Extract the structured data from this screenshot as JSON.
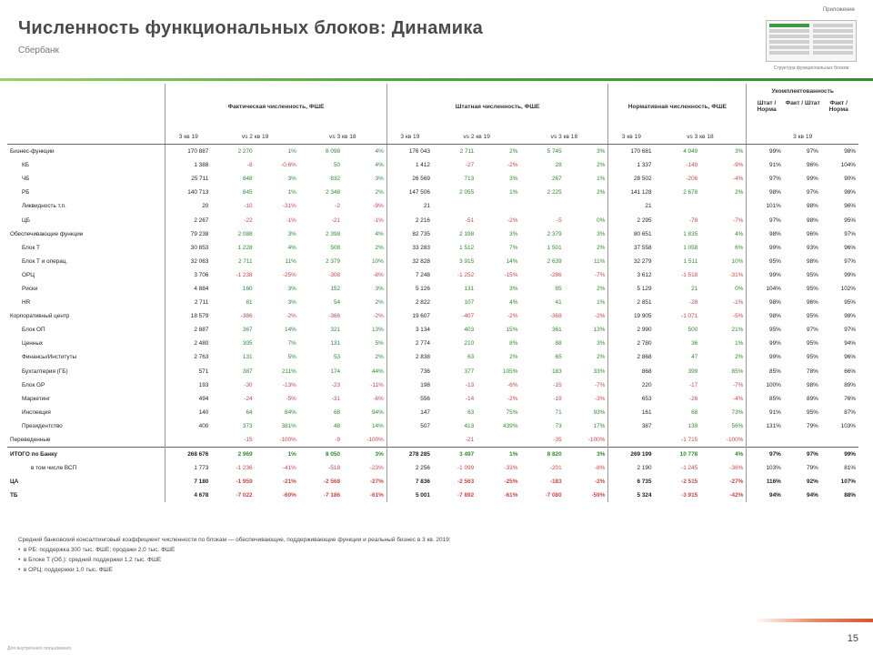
{
  "header": {
    "title": "Численность функциональных блоков: Динамика",
    "subtitle": "Сбербанк",
    "thumb_label": "Приложение",
    "thumb_caption": "Структура функциональных блоков"
  },
  "table": {
    "groups": {
      "g1": "Фактическая численность, ФШЕ",
      "g2": "Штатная численность, ФШЕ",
      "g3": "Нормативная численность, ФШЕ",
      "g4": "Укомплектованность",
      "g4_sub": [
        "Штат / Норма",
        "Факт / Штат",
        "Факт / Норма"
      ]
    },
    "subheaders": [
      "3 кв 19",
      "vs 2 кв 19",
      "vs 3 кв 18",
      "3 кв 19",
      "vs 2 кв 19",
      "vs 3 кв 18",
      "3 кв 19",
      "vs 3 кв 18",
      "3 кв 19"
    ],
    "rows": [
      {
        "label": "Бизнес-функции",
        "lvl": 0,
        "cells": [
          "170 887",
          "2 270",
          "1%",
          "6 098",
          "4%",
          "176 043",
          "2 711",
          "2%",
          "5 745",
          "3%",
          "170 681",
          "4 949",
          "3%",
          "99%",
          "97%",
          "98%"
        ]
      },
      {
        "label": "КБ",
        "lvl": 1,
        "cells": [
          "1 388",
          "-8",
          "-0.6%",
          "50",
          "4%",
          "1 412",
          "-27",
          "-2%",
          "28",
          "2%",
          "1 337",
          "-140",
          "-9%",
          "91%",
          "96%",
          "104%"
        ]
      },
      {
        "label": "ЧБ",
        "lvl": 1,
        "cells": [
          "25 711",
          "848",
          "3%",
          "832",
          "3%",
          "26 569",
          "713",
          "3%",
          "267",
          "1%",
          "28 502",
          "-206",
          "-4%",
          "97%",
          "99%",
          "90%"
        ]
      },
      {
        "label": "РБ",
        "lvl": 1,
        "cells": [
          "140 713",
          "845",
          "1%",
          "2 348",
          "2%",
          "147 506",
          "2 055",
          "1%",
          "2 225",
          "2%",
          "141 128",
          "2 678",
          "2%",
          "98%",
          "97%",
          "98%"
        ]
      },
      {
        "label": "Ликвидность т.п.",
        "lvl": 1,
        "cells": [
          "20",
          "-10",
          "-31%",
          "-2",
          "-9%",
          "21",
          "",
          "",
          "",
          "",
          "21",
          "",
          "",
          "101%",
          "98%",
          "96%"
        ]
      },
      {
        "label": "ЦБ",
        "lvl": 1,
        "cells": [
          "2 267",
          "-22",
          "-1%",
          "-21",
          "-1%",
          "2 216",
          "-51",
          "-2%",
          "-5",
          "0%",
          "2 295",
          "-78",
          "-7%",
          "97%",
          "98%",
          "95%"
        ]
      },
      {
        "label": "Обеспечивающие функции",
        "lvl": 0,
        "cells": [
          "79 238",
          "2 088",
          "3%",
          "2 398",
          "4%",
          "82 735",
          "2 198",
          "3%",
          "2 379",
          "3%",
          "80 651",
          "1 835",
          "4%",
          "98%",
          "96%",
          "97%"
        ]
      },
      {
        "label": "Блок Т",
        "lvl": 1,
        "cells": [
          "30 853",
          "1 228",
          "4%",
          "508",
          "2%",
          "33 283",
          "1 512",
          "7%",
          "1 501",
          "2%",
          "37 558",
          "1 058",
          "6%",
          "99%",
          "93%",
          "96%"
        ]
      },
      {
        "label": "Блок Т и операц.",
        "lvl": 1,
        "cells": [
          "32 063",
          "2 711",
          "11%",
          "2 379",
          "10%",
          "32 828",
          "3 915",
          "14%",
          "2 639",
          "11%",
          "32 279",
          "1 511",
          "10%",
          "95%",
          "98%",
          "97%"
        ]
      },
      {
        "label": "ОРЦ",
        "lvl": 1,
        "cells": [
          "3 706",
          "-1 238",
          "-25%",
          "-308",
          "-8%",
          "7 248",
          "-1 252",
          "-15%",
          "-286",
          "-7%",
          "3 612",
          "-1 518",
          "-31%",
          "99%",
          "95%",
          "99%"
        ]
      },
      {
        "label": "Риски",
        "lvl": 1,
        "cells": [
          "4 884",
          "160",
          "3%",
          "152",
          "3%",
          "5 126",
          "131",
          "3%",
          "85",
          "2%",
          "5 129",
          "21",
          "0%",
          "104%",
          "95%",
          "102%"
        ]
      },
      {
        "label": "HR",
        "lvl": 1,
        "cells": [
          "2 711",
          "81",
          "3%",
          "54",
          "2%",
          "2 822",
          "107",
          "4%",
          "41",
          "1%",
          "2 851",
          "-28",
          "-1%",
          "98%",
          "96%",
          "95%"
        ]
      },
      {
        "label": "Корпоративный центр",
        "lvl": 0,
        "cells": [
          "18 579",
          "-386",
          "-2%",
          "-366",
          "-2%",
          "19 607",
          "-407",
          "-2%",
          "-368",
          "-2%",
          "19 905",
          "-1 071",
          "-5%",
          "98%",
          "95%",
          "98%"
        ]
      },
      {
        "label": "Блок ОП",
        "lvl": 1,
        "cells": [
          "2 887",
          "367",
          "14%",
          "321",
          "13%",
          "3 134",
          "403",
          "15%",
          "361",
          "13%",
          "2 990",
          "500",
          "21%",
          "95%",
          "97%",
          "97%"
        ]
      },
      {
        "label": "Ценных",
        "lvl": 1,
        "cells": [
          "2 480",
          "305",
          "7%",
          "131",
          "5%",
          "2 774",
          "210",
          "8%",
          "88",
          "3%",
          "2 780",
          "36",
          "1%",
          "99%",
          "95%",
          "94%"
        ]
      },
      {
        "label": "Финансы/Институты",
        "lvl": 1,
        "cells": [
          "2 763",
          "131",
          "5%",
          "53",
          "2%",
          "2 838",
          "63",
          "2%",
          "65",
          "2%",
          "2 868",
          "47",
          "2%",
          "99%",
          "95%",
          "96%"
        ]
      },
      {
        "label": "Бухгалтерия (ГБ)",
        "lvl": 1,
        "cells": [
          "571",
          "387",
          "211%",
          "174",
          "44%",
          "736",
          "377",
          "105%",
          "183",
          "33%",
          "868",
          "399",
          "85%",
          "85%",
          "78%",
          "66%"
        ]
      },
      {
        "label": "Блок GP",
        "lvl": 1,
        "cells": [
          "193",
          "-30",
          "-13%",
          "-23",
          "-11%",
          "198",
          "-13",
          "-6%",
          "-15",
          "-7%",
          "220",
          "-17",
          "-7%",
          "100%",
          "98%",
          "89%"
        ]
      },
      {
        "label": "Маркетинг",
        "lvl": 1,
        "cells": [
          "494",
          "-24",
          "-5%",
          "-31",
          "-6%",
          "556",
          "-14",
          "-2%",
          "-19",
          "-3%",
          "653",
          "-26",
          "-4%",
          "85%",
          "89%",
          "76%"
        ]
      },
      {
        "label": "Инспекция",
        "lvl": 1,
        "cells": [
          "140",
          "64",
          "84%",
          "68",
          "94%",
          "147",
          "63",
          "75%",
          "71",
          "93%",
          "161",
          "68",
          "73%",
          "91%",
          "95%",
          "87%"
        ]
      },
      {
        "label": "Президентство",
        "lvl": 1,
        "cells": [
          "400",
          "373",
          "381%",
          "48",
          "14%",
          "507",
          "413",
          "439%",
          "73",
          "17%",
          "387",
          "139",
          "56%",
          "131%",
          "79%",
          "103%"
        ]
      },
      {
        "label": "Переведенные",
        "lvl": 0,
        "cells": [
          "",
          "-15",
          "-100%",
          "-9",
          "-100%",
          "",
          "-21",
          "",
          "-35",
          "-100%",
          "",
          "-1 715",
          "-100%",
          "",
          "",
          ""
        ]
      },
      {
        "label": "ИТОГО по Банку",
        "lvl": 0,
        "kind": "bold",
        "cells": [
          "268 676",
          "2 969",
          "1%",
          "8 050",
          "3%",
          "278 285",
          "3 497",
          "1%",
          "8 820",
          "3%",
          "269 199",
          "10 778",
          "4%",
          "97%",
          "97%",
          "99%"
        ]
      },
      {
        "label": "в том числе ВСП",
        "lvl": 2,
        "cells": [
          "1 773",
          "-1 236",
          "-41%",
          "-518",
          "-23%",
          "2 256",
          "-1 099",
          "-33%",
          "-201",
          "-8%",
          "2 190",
          "-1 245",
          "-36%",
          "103%",
          "79%",
          "81%"
        ]
      },
      {
        "label": "ЦА",
        "lvl": 0,
        "kind": "bold",
        "cells": [
          "7 180",
          "-1 959",
          "-21%",
          "-2 568",
          "-27%",
          "7 836",
          "-2 563",
          "-25%",
          "-183",
          "-2%",
          "6 735",
          "-2 515",
          "-27%",
          "116%",
          "92%",
          "107%"
        ]
      },
      {
        "label": "ТБ",
        "lvl": 0,
        "kind": "bold",
        "cells": [
          "4 678",
          "-7 022",
          "-60%",
          "-7 186",
          "-61%",
          "5 001",
          "-7 892",
          "-61%",
          "-7 080",
          "-59%",
          "5 324",
          "-3 915",
          "-42%",
          "94%",
          "94%",
          "88%"
        ]
      }
    ]
  },
  "notes": {
    "line0": "Средний банковский консалтинговый коэффициент численности по блокам — обеспечивающие, поддерживающие функции и реальный бизнес в 3 кв. 2019:",
    "bullets": [
      "в РБ: поддержка 300 тыс. ФШЕ; продажи 2,0 тыс. ФШЕ",
      "в Блоке Т (Об.): средний поддержки 1,2 тыс. ФШЕ",
      "в ОРЦ: поддержки 1,0 тыс. ФШЕ"
    ]
  },
  "footer": {
    "left": "Для внутреннего пользования",
    "page": "15"
  },
  "colors": {
    "positive": "#2e8b2e",
    "negative": "#d24545",
    "accent_green": "#4fa63a",
    "accent_orange": "#d6552f"
  }
}
